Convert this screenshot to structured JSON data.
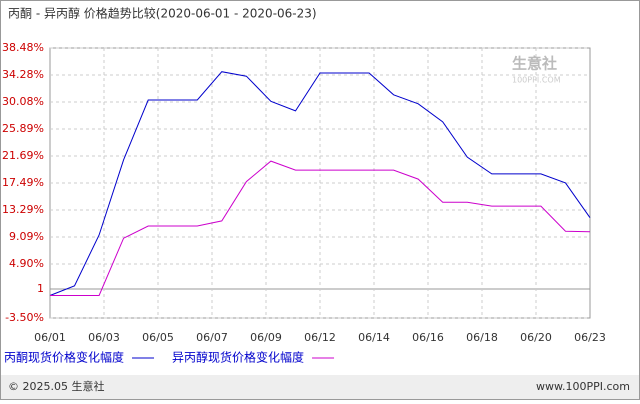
{
  "chart_data": {
    "type": "line",
    "title": "丙酮 - 异丙醇 价格趋势比较(2020-06-01 - 2020-06-23)",
    "x_labels": [
      "06/01",
      "06/03",
      "06/05",
      "06/07",
      "06/09",
      "06/12",
      "06/14",
      "06/16",
      "06/18",
      "06/20",
      "06/23"
    ],
    "series": [
      {
        "name": "丙酮现货价格变化幅度",
        "color": "#0000cc",
        "values": [
          0,
          1.5,
          9.4,
          21.1,
          30.4,
          30.4,
          30.4,
          34.8,
          34.1,
          30.2,
          28.7,
          34.6,
          34.6,
          34.6,
          31.2,
          29.8,
          27.0,
          21.5,
          18.9,
          18.9,
          18.9,
          17.5,
          12.1
        ]
      },
      {
        "name": "异丙醇现货价格变化幅度",
        "color": "#cc00cc",
        "values": [
          0,
          0,
          0,
          8.9,
          10.8,
          10.8,
          10.8,
          11.6,
          17.7,
          20.9,
          19.5,
          19.5,
          19.5,
          19.5,
          19.5,
          18.1,
          14.5,
          14.5,
          13.9,
          13.9,
          13.9,
          10.0,
          9.9
        ]
      }
    ],
    "ylim": [
      -3.5,
      38.48
    ],
    "yticks": [
      {
        "value": 38.48,
        "label": "38.48%"
      },
      {
        "value": 34.28,
        "label": "34.28%"
      },
      {
        "value": 30.08,
        "label": "30.08%"
      },
      {
        "value": 25.89,
        "label": "25.89%"
      },
      {
        "value": 21.69,
        "label": "21.69%"
      },
      {
        "value": 17.49,
        "label": "17.49%"
      },
      {
        "value": 13.29,
        "label": "13.29%"
      },
      {
        "value": 9.09,
        "label": "9.09%"
      },
      {
        "value": 4.9,
        "label": "4.90%"
      },
      1,
      {
        "value": -3.5,
        "label": "-3.50%"
      }
    ],
    "grid": true,
    "watermark": [
      "生意社",
      "100PPI.COM"
    ],
    "footer": [
      "© 2025.05 生意社",
      "www.100PPI.com"
    ]
  }
}
